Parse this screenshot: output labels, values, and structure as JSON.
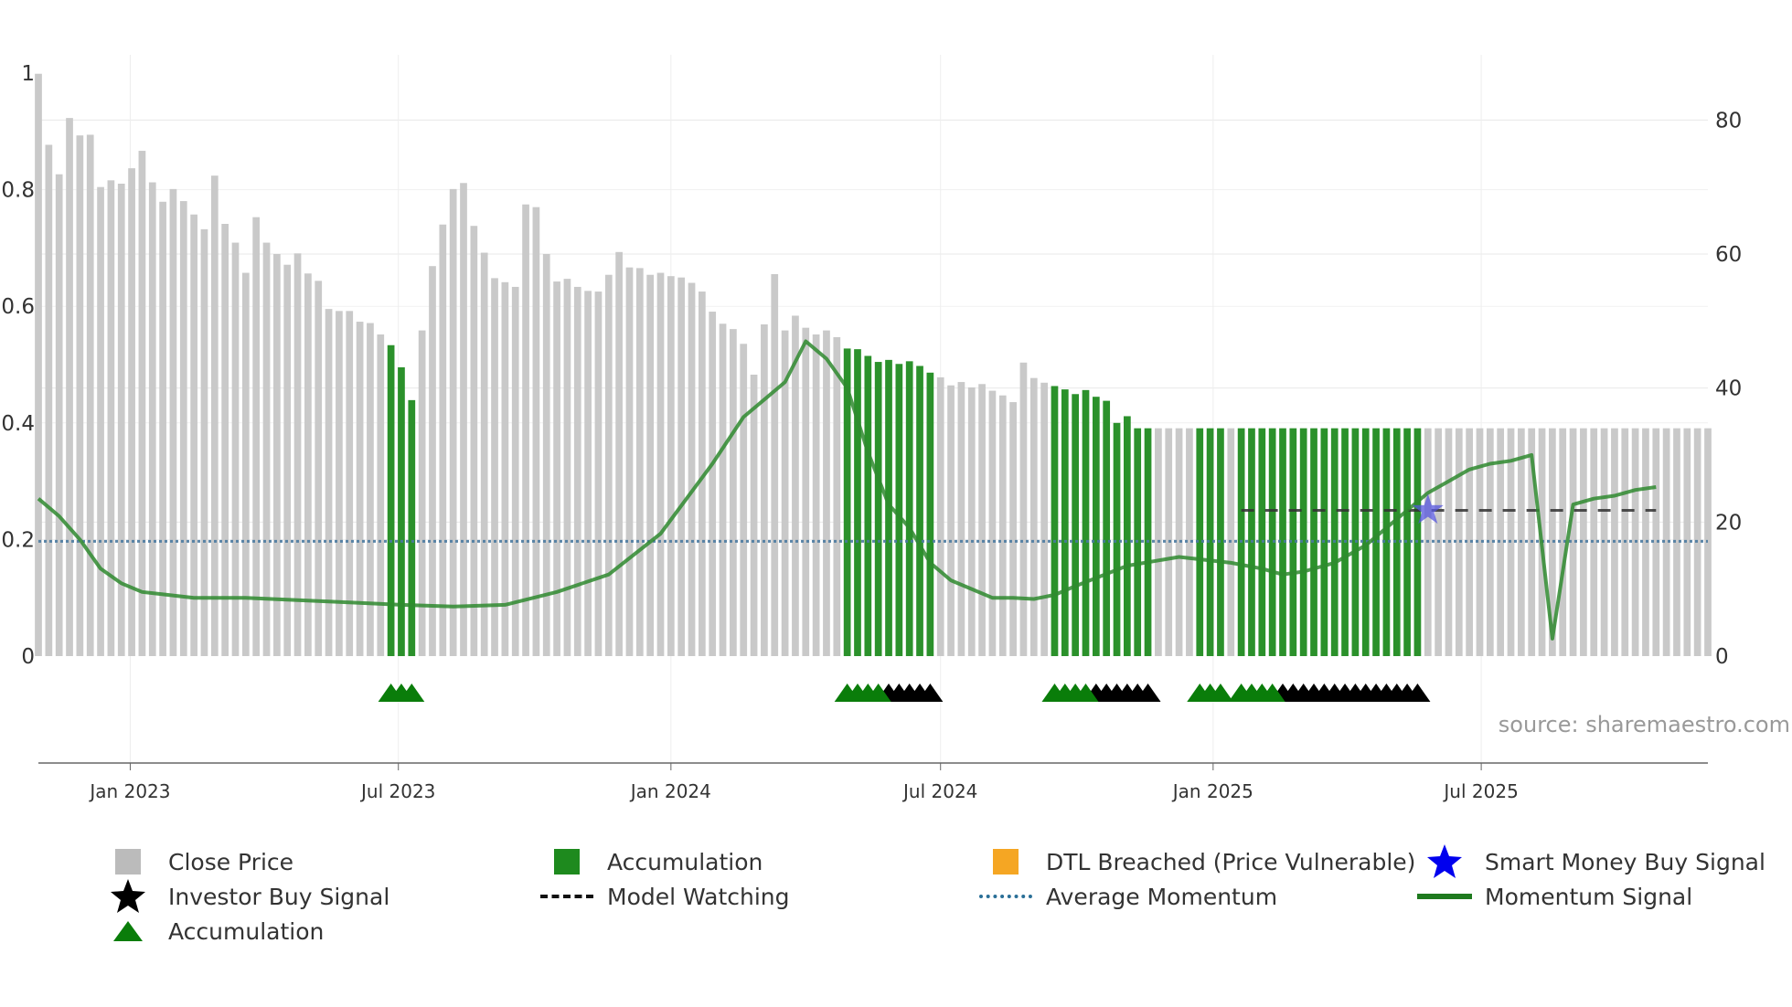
{
  "chart_data": {
    "type": "bar",
    "title": "",
    "source": "source: sharemaestro.com",
    "x_start": "2022-10-31",
    "x_step_days": 7,
    "x_ticks": [
      "Jan 2023",
      "Jul 2023",
      "Jan 2024",
      "Jul 2024",
      "Jan 2025",
      "Jul 2025"
    ],
    "x_tick_dates": [
      "2023-01-01",
      "2023-07-01",
      "2024-01-01",
      "2024-07-01",
      "2025-01-01",
      "2025-07-01"
    ],
    "y_left": {
      "ticks": [
        "0",
        "0.2",
        "0.4",
        "0.6",
        "0.8",
        "1"
      ],
      "ylim": [
        0,
        1
      ]
    },
    "y_right": {
      "ticks": [
        "0",
        "20",
        "40",
        "60",
        "80"
      ],
      "ylim": [
        0,
        87
      ]
    },
    "close_price": [
      86.9,
      76.3,
      71.9,
      80.3,
      77.7,
      77.8,
      70.0,
      71.0,
      70.5,
      72.8,
      75.4,
      70.7,
      67.8,
      69.7,
      67.9,
      65.9,
      63.7,
      71.7,
      64.5,
      61.7,
      57.2,
      65.5,
      61.7,
      60.0,
      58.4,
      60.1,
      57.1,
      56.0,
      51.8,
      51.5,
      51.5,
      49.9,
      49.7,
      48.0,
      46.4,
      43.1,
      38.2,
      48.6,
      58.2,
      64.4,
      69.7,
      70.6,
      64.2,
      60.2,
      56.4,
      55.8,
      55.1,
      67.4,
      67.0,
      60.0,
      55.9,
      56.3,
      55.1,
      54.5,
      54.4,
      56.9,
      60.3,
      58.0,
      57.9,
      56.9,
      57.2,
      56.7,
      56.5,
      55.7,
      54.4,
      51.4,
      49.6,
      48.8,
      46.6,
      42.0,
      49.5,
      57.0,
      48.6,
      50.8,
      49.0,
      48.0,
      48.6,
      47.6,
      45.9,
      45.8,
      44.8,
      43.9,
      44.2,
      43.6,
      44.0,
      43.3,
      42.3,
      41.6,
      40.4,
      40.9,
      40.1,
      40.6,
      39.6,
      38.9,
      37.9,
      43.8,
      41.5,
      40.8,
      40.3,
      39.8,
      39.1,
      39.7,
      38.7,
      38.1,
      34.8,
      35.8,
      34.0,
      34.0,
      34.0,
      34.0,
      34.0,
      34.0,
      34.0,
      34.0,
      34.0,
      34.0,
      34.0,
      34.0,
      34.0,
      34.0,
      34.0,
      34.0,
      34.0,
      34.0,
      34.0,
      34.0,
      34.0,
      34.0,
      34.0,
      34.0,
      34.0,
      34.0,
      34.0,
      34.0,
      34.0,
      34.0,
      34.0,
      34.0,
      34.0,
      34.0,
      34.0,
      34.0,
      34.0,
      34.0,
      34.0,
      34.0,
      34.0,
      34.0,
      34.0,
      34.0,
      34.0,
      34.0,
      34.0,
      34.0,
      34.0,
      34.0,
      34.0,
      34.0,
      34.0,
      34.0,
      34.0,
      34.0
    ],
    "accumulation_ranges": [
      [
        34,
        36
      ],
      [
        78,
        86
      ],
      [
        98,
        107
      ],
      [
        112,
        114
      ],
      [
        116,
        133
      ]
    ],
    "accumulation_triangles": [
      34,
      35,
      36,
      78,
      79,
      80,
      81,
      98,
      99,
      100,
      101,
      112,
      113,
      114,
      116,
      117,
      118,
      119
    ],
    "investor_buy_triangles": [
      82,
      83,
      84,
      85,
      86,
      102,
      103,
      104,
      105,
      106,
      107,
      120,
      121,
      122,
      123,
      124,
      125,
      126,
      127,
      128,
      129,
      130,
      131,
      132,
      133
    ],
    "model_watching": {
      "start_index": 116,
      "end_index": 156,
      "value": 0.25
    },
    "smart_money_buy_index": 134,
    "smart_money_buy_value": 0.25,
    "average_momentum": 0.197,
    "momentum_signal": {
      "x": [
        0,
        2,
        4,
        6,
        8,
        10,
        12,
        15,
        20,
        25,
        30,
        35,
        40,
        45,
        50,
        55,
        60,
        65,
        68,
        70,
        72,
        74,
        76,
        78,
        80,
        82,
        84,
        86,
        88,
        90,
        92,
        94,
        96,
        98,
        100,
        105,
        110,
        115,
        118,
        120,
        122,
        125,
        128,
        130,
        132,
        134,
        136,
        138,
        140,
        142,
        144,
        146,
        148,
        150,
        152,
        154,
        156
      ],
      "y": [
        0.27,
        0.24,
        0.2,
        0.15,
        0.125,
        0.11,
        0.106,
        0.1,
        0.1,
        0.096,
        0.092,
        0.088,
        0.085,
        0.088,
        0.11,
        0.14,
        0.21,
        0.33,
        0.41,
        0.44,
        0.47,
        0.54,
        0.51,
        0.46,
        0.35,
        0.26,
        0.22,
        0.16,
        0.13,
        0.115,
        0.1,
        0.1,
        0.098,
        0.105,
        0.12,
        0.155,
        0.17,
        0.16,
        0.15,
        0.14,
        0.145,
        0.16,
        0.19,
        0.22,
        0.25,
        0.28,
        0.3,
        0.32,
        0.33,
        0.335,
        0.345,
        0.03,
        0.26,
        0.27,
        0.275,
        0.285,
        0.29
      ]
    }
  },
  "legend": {
    "items": [
      {
        "label": "Close Price",
        "color": "#bbbbbb",
        "icon": "square"
      },
      {
        "label": "Accumulation",
        "color": "#1e8a1e",
        "icon": "square"
      },
      {
        "label": "DTL Breached (Price Vulnerable)",
        "color": "#f5a623",
        "icon": "square"
      },
      {
        "label": "Smart Money Buy Signal",
        "color": "#0000ee",
        "icon": "star"
      },
      {
        "label": "Investor Buy Signal",
        "color": "#000000",
        "icon": "star"
      },
      {
        "label": "Model Watching",
        "color": "#000000",
        "icon": "dash"
      },
      {
        "label": "Average Momentum",
        "color": "#2a6f97",
        "icon": "dot"
      },
      {
        "label": "Momentum Signal",
        "color": "#1e7a1e",
        "icon": "line"
      },
      {
        "label": "Accumulation",
        "color": "#0a7d0a",
        "icon": "triangle"
      }
    ]
  }
}
